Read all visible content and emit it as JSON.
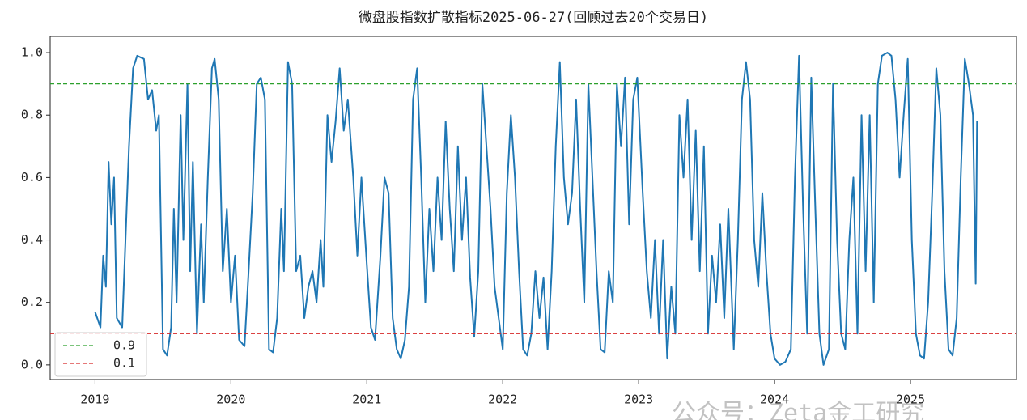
{
  "chart_data": {
    "type": "line",
    "title": "微盘股指数扩散指标2025-06-27(回顾过去20个交易日)",
    "watermark": "公众号：Zeta金工研究",
    "x": [
      2019.0,
      2019.04,
      2019.06,
      2019.08,
      2019.1,
      2019.12,
      2019.14,
      2019.16,
      2019.2,
      2019.25,
      2019.28,
      2019.31,
      2019.36,
      2019.39,
      2019.42,
      2019.45,
      2019.47,
      2019.5,
      2019.53,
      2019.56,
      2019.58,
      2019.6,
      2019.63,
      2019.65,
      2019.68,
      2019.7,
      2019.72,
      2019.75,
      2019.78,
      2019.8,
      2019.83,
      2019.86,
      2019.88,
      2019.91,
      2019.94,
      2019.97,
      2020.0,
      2020.03,
      2020.06,
      2020.1,
      2020.13,
      2020.16,
      2020.19,
      2020.22,
      2020.25,
      2020.28,
      2020.31,
      2020.34,
      2020.37,
      2020.39,
      2020.42,
      2020.45,
      2020.48,
      2020.51,
      2020.54,
      2020.57,
      2020.6,
      2020.63,
      2020.66,
      2020.68,
      2020.71,
      2020.74,
      2020.77,
      2020.8,
      2020.83,
      2020.86,
      2020.9,
      2020.93,
      2020.96,
      2021.0,
      2021.03,
      2021.06,
      2021.1,
      2021.13,
      2021.16,
      2021.19,
      2021.22,
      2021.25,
      2021.28,
      2021.31,
      2021.34,
      2021.37,
      2021.4,
      2021.43,
      2021.46,
      2021.49,
      2021.52,
      2021.55,
      2021.58,
      2021.61,
      2021.64,
      2021.67,
      2021.7,
      2021.73,
      2021.76,
      2021.79,
      2021.82,
      2021.85,
      2021.88,
      2021.91,
      2021.94,
      2021.97,
      2022.0,
      2022.03,
      2022.06,
      2022.09,
      2022.12,
      2022.15,
      2022.18,
      2022.21,
      2022.24,
      2022.27,
      2022.3,
      2022.33,
      2022.36,
      2022.39,
      2022.42,
      2022.45,
      2022.48,
      2022.51,
      2022.54,
      2022.57,
      2022.6,
      2022.63,
      2022.66,
      2022.69,
      2022.72,
      2022.75,
      2022.78,
      2022.81,
      2022.84,
      2022.87,
      2022.9,
      2022.93,
      2022.96,
      2022.99,
      2023.03,
      2023.06,
      2023.09,
      2023.12,
      2023.15,
      2023.18,
      2023.21,
      2023.24,
      2023.27,
      2023.3,
      2023.33,
      2023.36,
      2023.39,
      2023.42,
      2023.45,
      2023.48,
      2023.51,
      2023.54,
      2023.57,
      2023.6,
      2023.63,
      2023.66,
      2023.7,
      2023.73,
      2023.76,
      2023.79,
      2023.82,
      2023.85,
      2023.88,
      2023.91,
      2023.94,
      2023.97,
      2024.0,
      2024.04,
      2024.08,
      2024.12,
      2024.15,
      2024.18,
      2024.21,
      2024.24,
      2024.27,
      2024.3,
      2024.33,
      2024.36,
      2024.4,
      2024.43,
      2024.46,
      2024.49,
      2024.52,
      2024.55,
      2024.58,
      2024.61,
      2024.64,
      2024.67,
      2024.7,
      2024.73,
      2024.76,
      2024.79,
      2024.83,
      2024.86,
      2024.89,
      2024.92,
      2024.95,
      2024.98,
      2025.01,
      2025.04,
      2025.07,
      2025.1,
      2025.13,
      2025.16,
      2025.19,
      2025.22,
      2025.25,
      2025.28,
      2025.31,
      2025.34,
      2025.37,
      2025.4,
      2025.43,
      2025.46,
      2025.48,
      2025.49
    ],
    "series": [
      {
        "color": "#1f77b4",
        "values": [
          0.17,
          0.12,
          0.35,
          0.25,
          0.65,
          0.45,
          0.6,
          0.15,
          0.12,
          0.7,
          0.95,
          0.99,
          0.98,
          0.85,
          0.88,
          0.75,
          0.8,
          0.05,
          0.03,
          0.12,
          0.5,
          0.2,
          0.8,
          0.4,
          0.9,
          0.3,
          0.65,
          0.1,
          0.45,
          0.2,
          0.6,
          0.95,
          0.98,
          0.85,
          0.3,
          0.5,
          0.2,
          0.35,
          0.08,
          0.06,
          0.3,
          0.55,
          0.9,
          0.92,
          0.85,
          0.05,
          0.04,
          0.15,
          0.5,
          0.3,
          0.97,
          0.9,
          0.3,
          0.35,
          0.15,
          0.25,
          0.3,
          0.2,
          0.4,
          0.25,
          0.8,
          0.65,
          0.78,
          0.95,
          0.75,
          0.85,
          0.6,
          0.35,
          0.6,
          0.32,
          0.12,
          0.08,
          0.35,
          0.6,
          0.55,
          0.15,
          0.05,
          0.02,
          0.08,
          0.25,
          0.85,
          0.95,
          0.6,
          0.2,
          0.5,
          0.3,
          0.6,
          0.4,
          0.78,
          0.5,
          0.3,
          0.7,
          0.4,
          0.6,
          0.28,
          0.09,
          0.3,
          0.9,
          0.7,
          0.5,
          0.25,
          0.15,
          0.05,
          0.55,
          0.8,
          0.6,
          0.3,
          0.05,
          0.03,
          0.1,
          0.3,
          0.15,
          0.28,
          0.05,
          0.3,
          0.7,
          0.97,
          0.6,
          0.45,
          0.55,
          0.85,
          0.5,
          0.2,
          0.9,
          0.6,
          0.3,
          0.05,
          0.04,
          0.3,
          0.2,
          0.9,
          0.7,
          0.92,
          0.45,
          0.85,
          0.92,
          0.55,
          0.3,
          0.15,
          0.4,
          0.1,
          0.4,
          0.02,
          0.25,
          0.1,
          0.8,
          0.6,
          0.85,
          0.4,
          0.75,
          0.3,
          0.7,
          0.1,
          0.35,
          0.2,
          0.45,
          0.15,
          0.5,
          0.05,
          0.4,
          0.85,
          0.97,
          0.85,
          0.4,
          0.25,
          0.55,
          0.3,
          0.1,
          0.02,
          0,
          0.01,
          0.05,
          0.6,
          0.99,
          0.5,
          0.1,
          0.92,
          0.5,
          0.1,
          0,
          0.05,
          0.9,
          0.4,
          0.1,
          0.05,
          0.4,
          0.6,
          0.1,
          0.8,
          0.3,
          0.8,
          0.2,
          0.9,
          0.99,
          1.0,
          0.99,
          0.85,
          0.6,
          0.8,
          0.98,
          0.4,
          0.1,
          0.03,
          0.02,
          0.2,
          0.55,
          0.95,
          0.8,
          0.3,
          0.05,
          0.03,
          0.15,
          0.6,
          0.98,
          0.9,
          0.8,
          0.26,
          0.78
        ]
      }
    ],
    "hlines": [
      {
        "value": 0.9,
        "color": "#2ca02c"
      },
      {
        "value": 0.1,
        "color": "#d62728"
      }
    ],
    "legend": "lower left",
    "xlim": [
      2018.67,
      2025.78
    ],
    "xticks": [
      2019,
      2020,
      2021,
      2022,
      2023,
      2024,
      2025
    ],
    "ylim": [
      -0.047,
      1.052
    ],
    "yticks": [
      {
        "value": 0,
        "label": "0.0"
      },
      0.2,
      0.4,
      0.6,
      0.8,
      {
        "value": 1,
        "label": "1.0"
      }
    ]
  }
}
